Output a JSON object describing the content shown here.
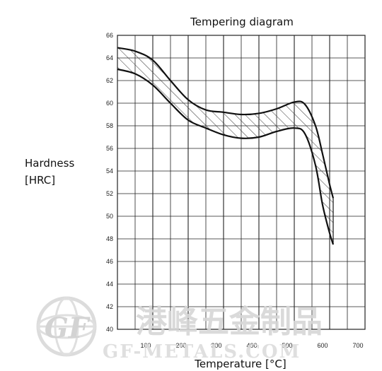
{
  "chart_data": {
    "type": "area",
    "title": "Tempering diagram",
    "xlabel": "Temperature [°C]",
    "ylabel_line1": "Hardness",
    "ylabel_line2": "[HRC]",
    "xlim": [
      0,
      700
    ],
    "ylim": [
      40,
      66
    ],
    "x_ticks": [
      "100",
      "200",
      "300",
      "400",
      "500",
      "600",
      "700"
    ],
    "y_ticks": [
      "40",
      "42",
      "44",
      "46",
      "48",
      "50",
      "52",
      "54",
      "56",
      "58",
      "60",
      "62",
      "64",
      "66"
    ],
    "grid": true,
    "band_fill": "hatched",
    "series": [
      {
        "role": "upper",
        "x": [
          0,
          50,
          100,
          150,
          200,
          250,
          300,
          350,
          400,
          450,
          500,
          530,
          560,
          580,
          600,
          610
        ],
        "y": [
          64.9,
          64.6,
          63.8,
          62.0,
          60.3,
          59.4,
          59.2,
          59.0,
          59.1,
          59.5,
          60.1,
          59.9,
          58.0,
          55.5,
          52.8,
          51.6
        ]
      },
      {
        "role": "lower",
        "x": [
          0,
          50,
          100,
          150,
          200,
          250,
          300,
          350,
          400,
          450,
          500,
          530,
          560,
          580,
          600,
          610
        ],
        "y": [
          63.0,
          62.6,
          61.6,
          60.0,
          58.5,
          57.8,
          57.2,
          56.9,
          57.0,
          57.5,
          57.8,
          57.3,
          54.5,
          51.0,
          48.5,
          47.5
        ]
      }
    ],
    "colors": {
      "line": "#111111",
      "grid": "#222222",
      "hatch": "#333333",
      "watermark": "#d6d6d6"
    }
  },
  "watermark": {
    "logo_text": "GF",
    "chinese_text": "港峰五金制品",
    "english_text": "GF-METALS.COM"
  }
}
